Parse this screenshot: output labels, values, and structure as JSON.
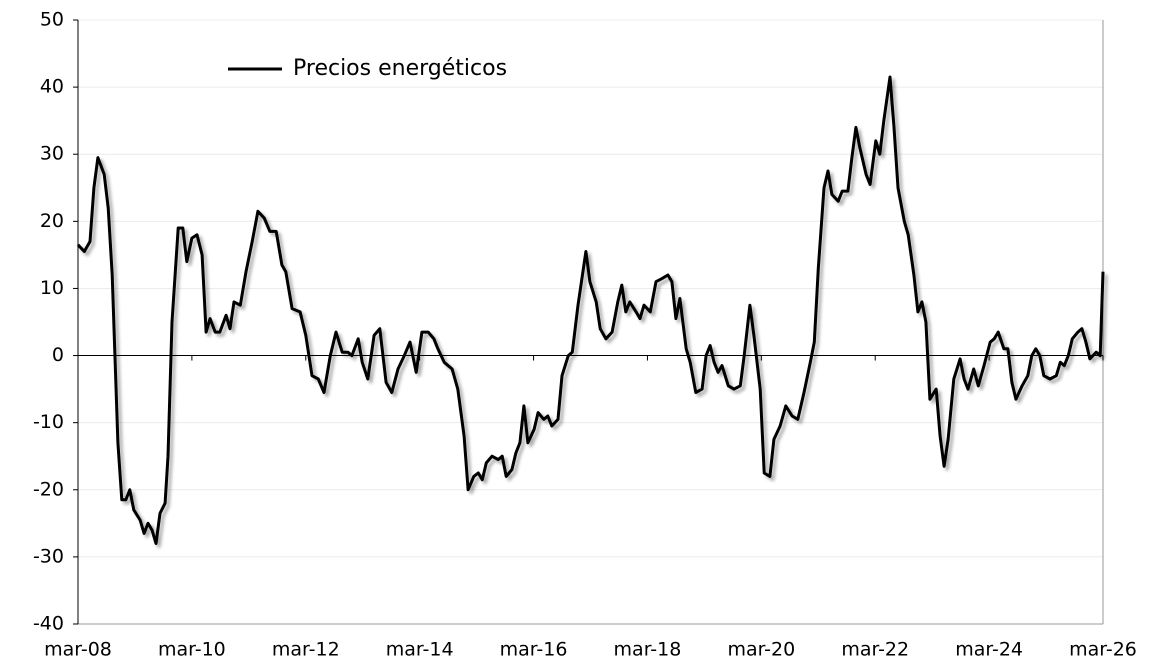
{
  "chart_data": {
    "type": "line",
    "x": [
      2008.17,
      2008.28,
      2008.38,
      2008.45,
      2008.52,
      2008.63,
      2008.7,
      2008.77,
      2008.87,
      2008.94,
      2009.01,
      2009.08,
      2009.15,
      2009.26,
      2009.33,
      2009.4,
      2009.47,
      2009.54,
      2009.61,
      2009.7,
      2009.75,
      2009.82,
      2009.93,
      2010.01,
      2010.08,
      2010.17,
      2010.26,
      2010.35,
      2010.42,
      2010.49,
      2010.58,
      2010.66,
      2010.77,
      2010.84,
      2010.91,
      2011.02,
      2011.12,
      2011.23,
      2011.33,
      2011.44,
      2011.54,
      2011.65,
      2011.75,
      2011.82,
      2011.93,
      2012.07,
      2012.17,
      2012.28,
      2012.39,
      2012.49,
      2012.6,
      2012.7,
      2012.81,
      2012.91,
      2012.98,
      2013.09,
      2013.16,
      2013.26,
      2013.37,
      2013.47,
      2013.58,
      2013.68,
      2013.79,
      2013.9,
      2014.0,
      2014.11,
      2014.21,
      2014.32,
      2014.42,
      2014.49,
      2014.6,
      2014.74,
      2014.84,
      2014.95,
      2015.02,
      2015.12,
      2015.2,
      2015.27,
      2015.34,
      2015.44,
      2015.55,
      2015.62,
      2015.69,
      2015.79,
      2015.86,
      2015.93,
      2016.0,
      2016.07,
      2016.18,
      2016.25,
      2016.35,
      2016.42,
      2016.49,
      2016.6,
      2016.67,
      2016.78,
      2016.85,
      2016.95,
      2017.09,
      2017.16,
      2017.27,
      2017.34,
      2017.44,
      2017.55,
      2017.65,
      2017.72,
      2017.79,
      2017.86,
      2017.97,
      2018.04,
      2018.11,
      2018.22,
      2018.32,
      2018.43,
      2018.53,
      2018.6,
      2018.67,
      2018.74,
      2018.85,
      2018.92,
      2019.02,
      2019.13,
      2019.2,
      2019.27,
      2019.34,
      2019.41,
      2019.48,
      2019.59,
      2019.69,
      2019.8,
      2019.87,
      2019.97,
      2020.04,
      2020.15,
      2020.22,
      2020.32,
      2020.39,
      2020.5,
      2020.6,
      2020.71,
      2020.81,
      2020.92,
      2021.03,
      2021.1,
      2021.17,
      2021.27,
      2021.34,
      2021.41,
      2021.52,
      2021.59,
      2021.69,
      2021.76,
      2021.83,
      2021.9,
      2022.01,
      2022.08,
      2022.18,
      2022.25,
      2022.32,
      2022.43,
      2022.5,
      2022.57,
      2022.68,
      2022.75,
      2022.85,
      2022.92,
      2022.99,
      2023.06,
      2023.13,
      2023.24,
      2023.31,
      2023.38,
      2023.45,
      2023.55,
      2023.66,
      2023.73,
      2023.8,
      2023.9,
      2023.98,
      2024.08,
      2024.19,
      2024.26,
      2024.33,
      2024.43,
      2024.5,
      2024.57,
      2024.64,
      2024.75,
      2024.85,
      2024.92,
      2024.99,
      2025.06,
      2025.13,
      2025.24,
      2025.35,
      2025.42,
      2025.49,
      2025.56,
      2025.63,
      2025.73,
      2025.8,
      2025.87,
      2025.94,
      2026.05,
      2026.12,
      2026.17
    ],
    "series": [
      {
        "name": "Precios energéticos",
        "color": "#000000",
        "values": [
          16.5,
          15.5,
          17,
          25,
          29.5,
          27,
          22,
          12,
          -13,
          -21.5,
          -21.5,
          -20,
          -23,
          -24.5,
          -26.5,
          -25,
          -26,
          -28,
          -23.5,
          -22,
          -15,
          5,
          19,
          19,
          14,
          17.5,
          18,
          15,
          3.5,
          5.5,
          3.5,
          3.5,
          6,
          4,
          8,
          7.5,
          12.5,
          17,
          21.5,
          20.5,
          18.5,
          18.5,
          13.5,
          12.5,
          7,
          6.5,
          3,
          -3,
          -3.5,
          -5.5,
          0,
          3.5,
          0.5,
          0.5,
          0,
          2.5,
          -1,
          -3.5,
          3,
          4,
          -4,
          -5.5,
          -2,
          0,
          2,
          -2.5,
          3.5,
          3.5,
          2.5,
          1,
          -1,
          -2,
          -5,
          -12,
          -20,
          -18,
          -17.5,
          -18.5,
          -16,
          -15,
          -15.5,
          -15,
          -18,
          -17,
          -14.5,
          -13,
          -7.5,
          -13,
          -11,
          -8.5,
          -9.5,
          -9,
          -10.5,
          -9.5,
          -3,
          0,
          0.5,
          7.5,
          15.5,
          11,
          8,
          4,
          2.5,
          3.5,
          8,
          10.5,
          6.5,
          8,
          6.5,
          5.5,
          7.5,
          6.5,
          11,
          11.5,
          12,
          11,
          5.5,
          8.5,
          1,
          -1,
          -5.5,
          -5,
          0,
          1.5,
          -1,
          -2.5,
          -1.5,
          -4.5,
          -5,
          -4.5,
          0,
          7.5,
          3,
          -5,
          -17.5,
          -18,
          -12.5,
          -10.5,
          -7.5,
          -9,
          -9.5,
          -5.5,
          -1,
          2,
          13,
          25,
          27.5,
          24,
          23,
          24.5,
          24.5,
          29.5,
          34,
          31,
          27,
          25.5,
          32,
          30,
          35,
          41.5,
          34,
          25,
          20,
          18,
          12,
          6.5,
          8,
          5,
          -6.5,
          -5,
          -12,
          -16.5,
          -12.5,
          -3.5,
          -0.5,
          -3.5,
          -5,
          -2,
          -4.5,
          -1.5,
          2,
          2.5,
          3.5,
          1,
          1,
          -4,
          -6.5,
          -4.5,
          -3,
          0,
          1,
          0,
          -3,
          -3.5,
          -3,
          -1,
          -1.5,
          0,
          2.5,
          3.5,
          4,
          2,
          -0.5,
          0.5,
          0,
          12.5
        ]
      }
    ],
    "xlim": [
      2008.17,
      2026.17
    ],
    "xticks": [
      {
        "value": 2008.17,
        "label": "mar-08"
      },
      {
        "value": 2010.17,
        "label": "mar-10"
      },
      {
        "value": 2012.17,
        "label": "mar-12"
      },
      {
        "value": 2014.17,
        "label": "mar-14"
      },
      {
        "value": 2016.17,
        "label": "mar-16"
      },
      {
        "value": 2018.17,
        "label": "mar-18"
      },
      {
        "value": 2020.17,
        "label": "mar-20"
      },
      {
        "value": 2022.17,
        "label": "mar-22"
      },
      {
        "value": 2024.17,
        "label": "mar-24"
      },
      {
        "value": 2026.17,
        "label": "mar-26"
      }
    ],
    "ylim": [
      -40,
      50
    ],
    "yticks": [
      -40,
      -30,
      -20,
      -10,
      0,
      10,
      20,
      30,
      40,
      50
    ],
    "grid": true
  }
}
